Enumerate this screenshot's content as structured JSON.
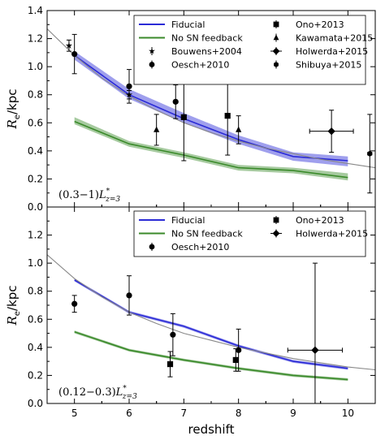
{
  "chart_data": [
    {
      "type": "line",
      "ylabel": "R_e/kpc",
      "ylabel_parts": {
        "base": "R",
        "sub": "e",
        "tail": "/kpc"
      },
      "annotation": "(0.3−1)L*z=3",
      "annotation_parts": {
        "range": "(0.3−1)",
        "sym": "L",
        "sup": "*",
        "sub": "z=3"
      },
      "xlim": [
        4.5,
        10.5
      ],
      "ylim": [
        0.0,
        1.4
      ],
      "y_ticks": [
        "0.0",
        "0.2",
        "0.4",
        "0.6",
        "0.8",
        "1.0",
        "1.2",
        "1.4"
      ],
      "grid": false,
      "legend_position": "top-right",
      "series": [
        {
          "name": "Fiducial",
          "kind": "band-line",
          "color": "#2b2bd6",
          "x": [
            5,
            6,
            7,
            8,
            9,
            10
          ],
          "values": [
            1.08,
            0.8,
            0.63,
            0.48,
            0.36,
            0.33
          ],
          "lower": [
            1.05,
            0.77,
            0.6,
            0.45,
            0.33,
            0.29
          ],
          "upper": [
            1.11,
            0.84,
            0.67,
            0.51,
            0.39,
            0.36
          ]
        },
        {
          "name": "No SN feedback",
          "kind": "band-line",
          "color": "#3a8a2a",
          "x": [
            5,
            6,
            7,
            8,
            9,
            10
          ],
          "values": [
            0.61,
            0.45,
            0.37,
            0.28,
            0.26,
            0.21
          ],
          "lower": [
            0.59,
            0.43,
            0.35,
            0.26,
            0.24,
            0.19
          ],
          "upper": [
            0.64,
            0.47,
            0.39,
            0.3,
            0.28,
            0.24
          ]
        },
        {
          "name": "",
          "kind": "fit-line",
          "color": "#888888",
          "x": [
            4.5,
            5.0,
            5.5,
            6.0,
            6.5,
            7.0,
            7.5,
            8.0,
            8.5,
            9.0,
            9.5,
            10.0,
            10.5
          ],
          "values": [
            1.27,
            1.08,
            0.92,
            0.79,
            0.69,
            0.6,
            0.53,
            0.47,
            0.42,
            0.38,
            0.34,
            0.31,
            0.28
          ]
        },
        {
          "name": "Bouwens+2004",
          "kind": "points",
          "marker": "star",
          "points": [
            {
              "x": 4.9,
              "y": 1.15,
              "yerr": 0.04
            },
            {
              "x": 6.0,
              "y": 0.8,
              "yerr": 0.03
            }
          ]
        },
        {
          "name": "Oesch+2010",
          "kind": "points",
          "marker": "circle",
          "points": [
            {
              "x": 5.0,
              "y": 1.09,
              "yerr": 0.14
            },
            {
              "x": 6.0,
              "y": 0.86,
              "yerr": 0.12
            },
            {
              "x": 6.85,
              "y": 0.75,
              "yerr": 0.12
            }
          ]
        },
        {
          "name": "Ono+2013",
          "kind": "points",
          "marker": "square",
          "points": [
            {
              "x": 7.0,
              "y": 0.64,
              "yerr": 0.31
            },
            {
              "x": 7.8,
              "y": 0.65,
              "yerr": 0.28
            }
          ]
        },
        {
          "name": "Kawamata+2015",
          "kind": "points",
          "marker": "triangle",
          "points": [
            {
              "x": 6.5,
              "y": 0.55,
              "yerr": 0.11
            },
            {
              "x": 8.0,
              "y": 0.55,
              "yerr": 0.1
            }
          ]
        },
        {
          "name": "Holwerda+2015",
          "kind": "points",
          "marker": "diamond",
          "points": [
            {
              "x": 9.7,
              "y": 0.54,
              "yerr": 0.15,
              "xerr": 0.4
            }
          ]
        },
        {
          "name": "Shibuya+2015",
          "kind": "points",
          "marker": "hexagon",
          "points": [
            {
              "x": 10.4,
              "y": 0.38,
              "yerr": 0.28
            }
          ]
        }
      ],
      "legend_order": [
        "Fiducial",
        "Ono+2013",
        "No SN feedback",
        "Kawamata+2015",
        "Bouwens+2004",
        "Holwerda+2015",
        "Oesch+2010",
        "Shibuya+2015"
      ]
    },
    {
      "type": "line",
      "xlabel": "redshift",
      "ylabel": "R_e/kpc",
      "ylabel_parts": {
        "base": "R",
        "sub": "e",
        "tail": "/kpc"
      },
      "annotation": "(0.12−0.3)L*z=3",
      "annotation_parts": {
        "range": "(0.12−0.3)",
        "sym": "L",
        "sup": "*",
        "sub": "z=3"
      },
      "xlim": [
        4.5,
        10.5
      ],
      "ylim": [
        0.0,
        1.4
      ],
      "x_ticks": [
        "5",
        "6",
        "7",
        "8",
        "9",
        "10"
      ],
      "y_ticks": [
        "0.0",
        "0.2",
        "0.4",
        "0.6",
        "0.8",
        "1.0",
        "1.2"
      ],
      "grid": false,
      "legend_position": "top-right",
      "series": [
        {
          "name": "Fiducial",
          "kind": "band-line",
          "color": "#2b2bd6",
          "x": [
            5,
            6,
            7,
            8,
            9,
            10
          ],
          "values": [
            0.88,
            0.65,
            0.55,
            0.41,
            0.3,
            0.25
          ],
          "lower": [
            0.87,
            0.64,
            0.54,
            0.4,
            0.29,
            0.24
          ],
          "upper": [
            0.89,
            0.66,
            0.56,
            0.42,
            0.31,
            0.26
          ]
        },
        {
          "name": "No SN feedback",
          "kind": "band-line",
          "color": "#3a8a2a",
          "x": [
            5,
            6,
            7,
            8,
            9,
            10
          ],
          "values": [
            0.51,
            0.38,
            0.31,
            0.25,
            0.2,
            0.17
          ],
          "lower": [
            0.5,
            0.37,
            0.3,
            0.24,
            0.19,
            0.16
          ],
          "upper": [
            0.52,
            0.39,
            0.32,
            0.26,
            0.21,
            0.18
          ]
        },
        {
          "name": "",
          "kind": "fit-line",
          "color": "#888888",
          "x": [
            4.5,
            5.0,
            5.5,
            6.0,
            6.5,
            7.0,
            7.5,
            8.0,
            8.5,
            9.0,
            9.5,
            10.0,
            10.5
          ],
          "values": [
            1.06,
            0.89,
            0.76,
            0.65,
            0.57,
            0.5,
            0.45,
            0.4,
            0.36,
            0.32,
            0.29,
            0.26,
            0.24
          ]
        },
        {
          "name": "Oesch+2010",
          "kind": "points",
          "marker": "circle",
          "points": [
            {
              "x": 5.0,
              "y": 0.71,
              "yerr": 0.06
            },
            {
              "x": 6.0,
              "y": 0.77,
              "yerr": 0.14
            },
            {
              "x": 6.8,
              "y": 0.49,
              "yerr": 0.15
            },
            {
              "x": 8.0,
              "y": 0.38,
              "yerr": 0.15
            }
          ]
        },
        {
          "name": "Ono+2013",
          "kind": "points",
          "marker": "square",
          "points": [
            {
              "x": 6.75,
              "y": 0.28,
              "yerr": 0.09
            },
            {
              "x": 7.95,
              "y": 0.31,
              "yerr": 0.08
            }
          ]
        },
        {
          "name": "Holwerda+2015",
          "kind": "points",
          "marker": "diamond",
          "points": [
            {
              "x": 9.4,
              "y": 0.38,
              "ylo": 0.38,
              "yhi": 0.62,
              "xerr": 0.5
            }
          ]
        }
      ],
      "legend_order": [
        "Fiducial",
        "Ono+2013",
        "No SN feedback",
        "Holwerda+2015",
        "Oesch+2010"
      ]
    }
  ]
}
